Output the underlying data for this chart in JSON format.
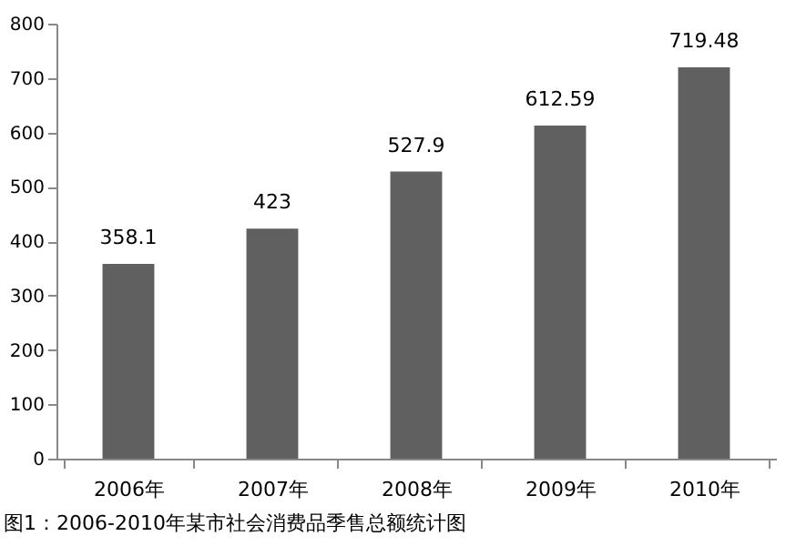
{
  "chart_data": {
    "type": "bar",
    "categories": [
      "2006年",
      "2007年",
      "2008年",
      "2009年",
      "2010年"
    ],
    "values": [
      358.1,
      423,
      527.9,
      612.59,
      719.48
    ],
    "color": "#606060",
    "ylim": [
      0,
      800
    ],
    "yticks": [
      0,
      100,
      200,
      300,
      400,
      500,
      600,
      700,
      800
    ],
    "grid": false,
    "data_labels": true,
    "annotations": [
      "图1：2006-2010年某市社会消费品季售总额统计图"
    ]
  }
}
